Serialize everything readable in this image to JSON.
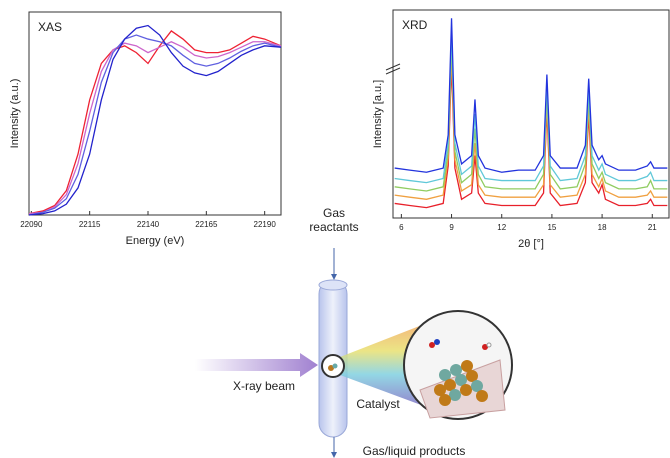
{
  "chart_data": [
    {
      "type": "line",
      "title": "XAS",
      "x_label": "Energy (eV)",
      "y_label": "Intensity (a.u.)",
      "x": [
        22089,
        22095,
        22100,
        22105,
        22110,
        22115,
        22120,
        22125,
        22130,
        22135,
        22140,
        22145,
        22150,
        22155,
        22160,
        22165,
        22170,
        22175,
        22180,
        22185,
        22190,
        22197
      ],
      "xlim": [
        22089,
        22197
      ],
      "xticks": [
        22090,
        22115,
        22140,
        22165,
        22190
      ],
      "ylim": [
        0,
        1.5
      ],
      "series": [
        {
          "color": "#ee2233",
          "values": [
            0.01,
            0.03,
            0.07,
            0.18,
            0.45,
            0.85,
            1.12,
            1.22,
            1.25,
            1.2,
            1.12,
            1.25,
            1.36,
            1.3,
            1.22,
            1.2,
            1.2,
            1.22,
            1.27,
            1.32,
            1.3,
            1.25
          ]
        },
        {
          "color": "#cc66cc",
          "values": [
            0.01,
            0.02,
            0.06,
            0.15,
            0.38,
            0.75,
            1.06,
            1.22,
            1.27,
            1.25,
            1.2,
            1.24,
            1.28,
            1.24,
            1.18,
            1.16,
            1.17,
            1.2,
            1.24,
            1.28,
            1.28,
            1.25
          ]
        },
        {
          "color": "#6060e0",
          "values": [
            0.0,
            0.02,
            0.05,
            0.12,
            0.3,
            0.62,
            0.98,
            1.2,
            1.3,
            1.33,
            1.3,
            1.28,
            1.25,
            1.18,
            1.12,
            1.1,
            1.12,
            1.16,
            1.21,
            1.25,
            1.27,
            1.24
          ]
        },
        {
          "color": "#2222cc",
          "values": [
            0.0,
            0.01,
            0.03,
            0.08,
            0.2,
            0.45,
            0.85,
            1.15,
            1.3,
            1.38,
            1.4,
            1.33,
            1.2,
            1.1,
            1.05,
            1.03,
            1.06,
            1.12,
            1.18,
            1.22,
            1.25,
            1.24
          ]
        }
      ]
    },
    {
      "type": "line",
      "title": "XRD",
      "x_label": "2θ [°]",
      "y_label": "Intensity [a.u.]",
      "x": [
        5.6,
        6.5,
        7.5,
        8.5,
        8.8,
        9.0,
        9.2,
        9.6,
        10.2,
        10.4,
        10.6,
        11,
        12,
        13,
        14,
        14.5,
        14.7,
        14.9,
        15.5,
        16.5,
        17.0,
        17.2,
        17.4,
        17.8,
        18.0,
        18.2,
        19,
        20,
        20.7,
        20.9,
        21.1,
        21.9
      ],
      "xlim": [
        5.5,
        22
      ],
      "xticks": [
        6,
        9,
        12,
        15,
        18,
        21
      ],
      "ylim": [
        0,
        100
      ],
      "series": [
        {
          "color": "#e8202a",
          "values": [
            7,
            6,
            5,
            7,
            25,
            74,
            24,
            9,
            12,
            30,
            12,
            7,
            6,
            6,
            6,
            12,
            52,
            12,
            6,
            7,
            17,
            50,
            17,
            12,
            16,
            9,
            6,
            6,
            7,
            9,
            6,
            6
          ]
        },
        {
          "color": "#f0a040",
          "values": [
            11,
            10,
            9,
            11,
            29,
            80,
            28,
            13,
            16,
            36,
            16,
            11,
            10,
            10,
            10,
            16,
            56,
            16,
            10,
            11,
            21,
            54,
            21,
            15,
            19,
            13,
            10,
            10,
            11,
            13,
            10,
            10
          ]
        },
        {
          "color": "#90cc60",
          "values": [
            15,
            14,
            13,
            15,
            32,
            85,
            32,
            17,
            21,
            43,
            21,
            15,
            14,
            14,
            14,
            21,
            60,
            21,
            14,
            15,
            26,
            58,
            26,
            19,
            22,
            17,
            14,
            14,
            15,
            18,
            14,
            14
          ]
        },
        {
          "color": "#60c8d8",
          "values": [
            19,
            18,
            17,
            19,
            36,
            90,
            36,
            21,
            25,
            50,
            25,
            19,
            18,
            18,
            18,
            25,
            65,
            25,
            18,
            19,
            30,
            62,
            30,
            23,
            26,
            21,
            18,
            18,
            20,
            22,
            18,
            18
          ]
        },
        {
          "color": "#2233dd",
          "values": [
            24,
            23,
            22,
            24,
            40,
            96,
            40,
            26,
            30,
            57,
            30,
            24,
            22,
            23,
            23,
            30,
            69,
            30,
            24,
            24,
            35,
            67,
            35,
            28,
            30,
            26,
            23,
            23,
            25,
            27,
            24,
            24
          ]
        }
      ]
    }
  ],
  "diagram": {
    "gas_in": "Gas reactants",
    "beam": "X-ray beam",
    "catalyst": "Catalyst",
    "gas_out": "Gas/liquid products"
  }
}
